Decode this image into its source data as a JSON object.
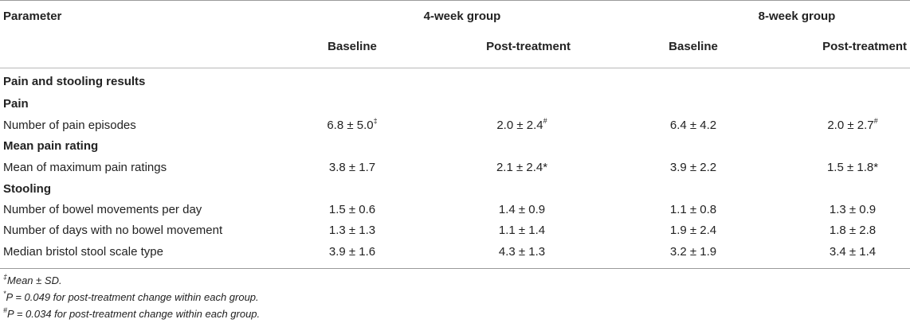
{
  "table": {
    "col_parameter": "Parameter",
    "group4": "4-week group",
    "group8": "8-week group",
    "baseline": "Baseline",
    "post": "Post-treatment",
    "section_title": "Pain and stooling results",
    "pain_heading": "Pain",
    "pain_row": {
      "label": "Number of pain episodes",
      "b4": "6.8 ± 5.0",
      "b4_sup": "‡",
      "p4": "2.0 ± 2.4",
      "p4_sup": "#",
      "b8": "6.4 ± 4.2",
      "p8": "2.0 ± 2.7",
      "p8_sup": "#"
    },
    "mean_heading": "Mean pain rating",
    "mean_row": {
      "label": "Mean of maximum pain ratings",
      "b4": "3.8 ± 1.7",
      "p4": "2.1 ± 2.4*",
      "b8": "3.9 ± 2.2",
      "p8": "1.5 ± 1.8*"
    },
    "stool_heading": "Stooling",
    "stool_rows": [
      {
        "label": "Number of bowel movements per day",
        "b4": "1.5 ± 0.6",
        "p4": "1.4 ± 0.9",
        "b8": "1.1 ± 0.8",
        "p8": "1.3 ± 0.9"
      },
      {
        "label": "Number of days with no bowel movement",
        "b4": "1.3 ± 1.3",
        "p4": "1.1 ± 1.4",
        "b8": "1.9 ± 2.4",
        "p8": "1.8 ± 2.8"
      },
      {
        "label": "Median bristol stool scale type",
        "b4": "3.9 ± 1.6",
        "p4": "4.3 ± 1.3",
        "b8": "3.2 ± 1.9",
        "p8": "3.4 ± 1.4"
      }
    ]
  },
  "footnotes": [
    {
      "sup": "‡",
      "text": "Mean ± SD."
    },
    {
      "sup": "*",
      "text": "P = 0.049 for post-treatment change within each group."
    },
    {
      "sup": "#",
      "text": "P = 0.034 for post-treatment change within each group."
    }
  ]
}
